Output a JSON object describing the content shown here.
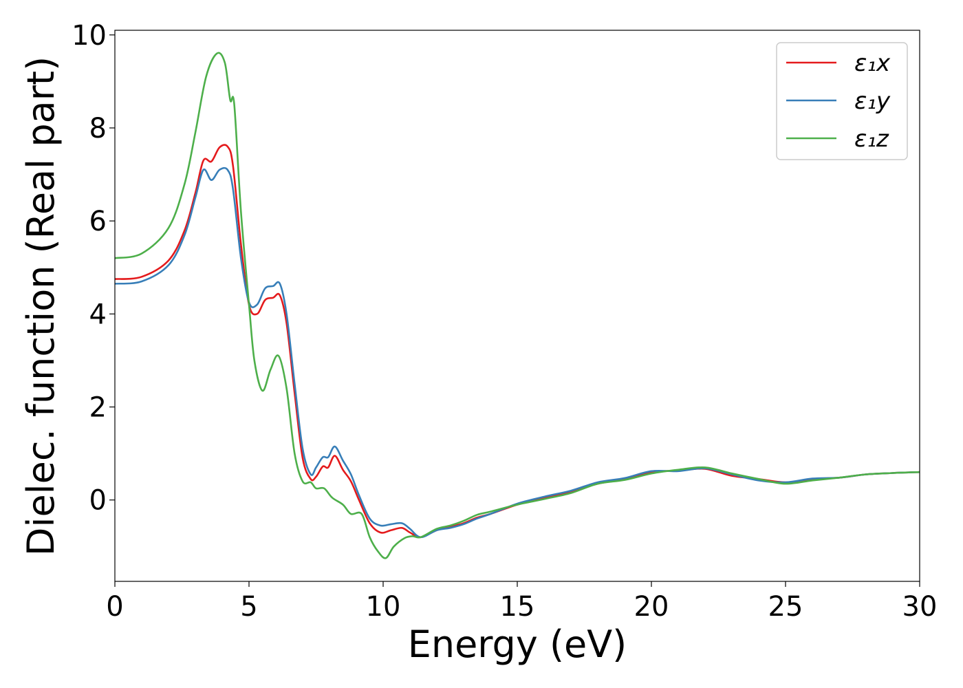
{
  "chart_data": {
    "type": "line",
    "title": "",
    "xlabel": "Energy (eV)",
    "ylabel": "Dielec. function (Real part)",
    "xlim": [
      0,
      30
    ],
    "ylim": [
      -1.75,
      10.1
    ],
    "xticks": [
      0,
      5,
      10,
      15,
      20,
      25,
      30
    ],
    "yticks": [
      0,
      2,
      4,
      6,
      8,
      10
    ],
    "grid": false,
    "legend_position": "top-right",
    "series": [
      {
        "name": "ε₁x",
        "color": "#e41a1c",
        "points": [
          [
            0,
            4.75
          ],
          [
            1,
            4.8
          ],
          [
            2,
            5.15
          ],
          [
            2.6,
            5.8
          ],
          [
            3.0,
            6.6
          ],
          [
            3.3,
            7.3
          ],
          [
            3.6,
            7.28
          ],
          [
            3.9,
            7.58
          ],
          [
            4.2,
            7.6
          ],
          [
            4.4,
            7.2
          ],
          [
            4.7,
            5.5
          ],
          [
            5.0,
            4.2
          ],
          [
            5.3,
            4.0
          ],
          [
            5.6,
            4.3
          ],
          [
            5.9,
            4.35
          ],
          [
            6.15,
            4.4
          ],
          [
            6.4,
            3.8
          ],
          [
            6.7,
            2.3
          ],
          [
            7.0,
            0.9
          ],
          [
            7.3,
            0.45
          ],
          [
            7.5,
            0.5
          ],
          [
            7.75,
            0.72
          ],
          [
            7.95,
            0.7
          ],
          [
            8.2,
            0.95
          ],
          [
            8.5,
            0.65
          ],
          [
            8.8,
            0.4
          ],
          [
            9.1,
            0.0
          ],
          [
            9.5,
            -0.5
          ],
          [
            9.9,
            -0.7
          ],
          [
            10.3,
            -0.65
          ],
          [
            10.7,
            -0.6
          ],
          [
            11.0,
            -0.7
          ],
          [
            11.4,
            -0.8
          ],
          [
            12,
            -0.65
          ],
          [
            12.5,
            -0.58
          ],
          [
            13,
            -0.5
          ],
          [
            13.5,
            -0.38
          ],
          [
            14,
            -0.3
          ],
          [
            15,
            -0.1
          ],
          [
            16,
            0.05
          ],
          [
            17,
            0.18
          ],
          [
            18,
            0.35
          ],
          [
            19,
            0.45
          ],
          [
            20,
            0.6
          ],
          [
            21,
            0.63
          ],
          [
            22,
            0.67
          ],
          [
            23,
            0.52
          ],
          [
            24,
            0.45
          ],
          [
            25,
            0.38
          ],
          [
            26,
            0.45
          ],
          [
            27,
            0.48
          ],
          [
            28,
            0.55
          ],
          [
            29,
            0.58
          ],
          [
            30,
            0.6
          ]
        ]
      },
      {
        "name": "ε₁y",
        "color": "#377eb8",
        "points": [
          [
            0,
            4.65
          ],
          [
            1,
            4.7
          ],
          [
            2,
            5.05
          ],
          [
            2.6,
            5.7
          ],
          [
            3.0,
            6.5
          ],
          [
            3.3,
            7.1
          ],
          [
            3.6,
            6.88
          ],
          [
            3.9,
            7.1
          ],
          [
            4.2,
            7.1
          ],
          [
            4.4,
            6.7
          ],
          [
            4.7,
            5.2
          ],
          [
            5.0,
            4.25
          ],
          [
            5.3,
            4.2
          ],
          [
            5.6,
            4.55
          ],
          [
            5.9,
            4.6
          ],
          [
            6.15,
            4.65
          ],
          [
            6.4,
            4.0
          ],
          [
            6.7,
            2.5
          ],
          [
            7.0,
            1.1
          ],
          [
            7.3,
            0.55
          ],
          [
            7.5,
            0.7
          ],
          [
            7.75,
            0.92
          ],
          [
            7.95,
            0.92
          ],
          [
            8.2,
            1.15
          ],
          [
            8.5,
            0.85
          ],
          [
            8.8,
            0.55
          ],
          [
            9.1,
            0.1
          ],
          [
            9.5,
            -0.4
          ],
          [
            9.9,
            -0.55
          ],
          [
            10.3,
            -0.52
          ],
          [
            10.7,
            -0.5
          ],
          [
            11.0,
            -0.62
          ],
          [
            11.4,
            -0.8
          ],
          [
            12,
            -0.65
          ],
          [
            12.5,
            -0.6
          ],
          [
            13,
            -0.52
          ],
          [
            13.5,
            -0.4
          ],
          [
            14,
            -0.3
          ],
          [
            15,
            -0.08
          ],
          [
            16,
            0.07
          ],
          [
            17,
            0.2
          ],
          [
            18,
            0.38
          ],
          [
            19,
            0.47
          ],
          [
            20,
            0.62
          ],
          [
            21,
            0.62
          ],
          [
            22,
            0.68
          ],
          [
            23,
            0.55
          ],
          [
            24,
            0.42
          ],
          [
            25,
            0.38
          ],
          [
            26,
            0.46
          ],
          [
            27,
            0.48
          ],
          [
            28,
            0.55
          ],
          [
            29,
            0.58
          ],
          [
            30,
            0.6
          ]
        ]
      },
      {
        "name": "ε₁z",
        "color": "#4daf4a",
        "points": [
          [
            0,
            5.2
          ],
          [
            1,
            5.3
          ],
          [
            2,
            5.85
          ],
          [
            2.6,
            6.8
          ],
          [
            3.0,
            7.9
          ],
          [
            3.4,
            9.1
          ],
          [
            3.8,
            9.6
          ],
          [
            4.1,
            9.4
          ],
          [
            4.3,
            8.6
          ],
          [
            4.45,
            8.5
          ],
          [
            4.7,
            6.2
          ],
          [
            5.0,
            4.2
          ],
          [
            5.2,
            3.0
          ],
          [
            5.5,
            2.35
          ],
          [
            5.8,
            2.8
          ],
          [
            6.1,
            3.1
          ],
          [
            6.4,
            2.4
          ],
          [
            6.7,
            1.0
          ],
          [
            7.0,
            0.4
          ],
          [
            7.3,
            0.38
          ],
          [
            7.5,
            0.25
          ],
          [
            7.8,
            0.25
          ],
          [
            8.1,
            0.05
          ],
          [
            8.5,
            -0.1
          ],
          [
            8.8,
            -0.3
          ],
          [
            9.2,
            -0.3
          ],
          [
            9.5,
            -0.8
          ],
          [
            9.8,
            -1.1
          ],
          [
            10.1,
            -1.25
          ],
          [
            10.4,
            -1.0
          ],
          [
            10.8,
            -0.82
          ],
          [
            11.1,
            -0.78
          ],
          [
            11.4,
            -0.8
          ],
          [
            12,
            -0.62
          ],
          [
            12.5,
            -0.55
          ],
          [
            13,
            -0.45
          ],
          [
            13.5,
            -0.32
          ],
          [
            14,
            -0.25
          ],
          [
            15,
            -0.1
          ],
          [
            16,
            0.02
          ],
          [
            17,
            0.15
          ],
          [
            18,
            0.35
          ],
          [
            19,
            0.43
          ],
          [
            20,
            0.57
          ],
          [
            21,
            0.65
          ],
          [
            22,
            0.7
          ],
          [
            23,
            0.57
          ],
          [
            24,
            0.45
          ],
          [
            25,
            0.35
          ],
          [
            26,
            0.42
          ],
          [
            27,
            0.48
          ],
          [
            28,
            0.55
          ],
          [
            29,
            0.58
          ],
          [
            30,
            0.6
          ]
        ]
      }
    ]
  }
}
